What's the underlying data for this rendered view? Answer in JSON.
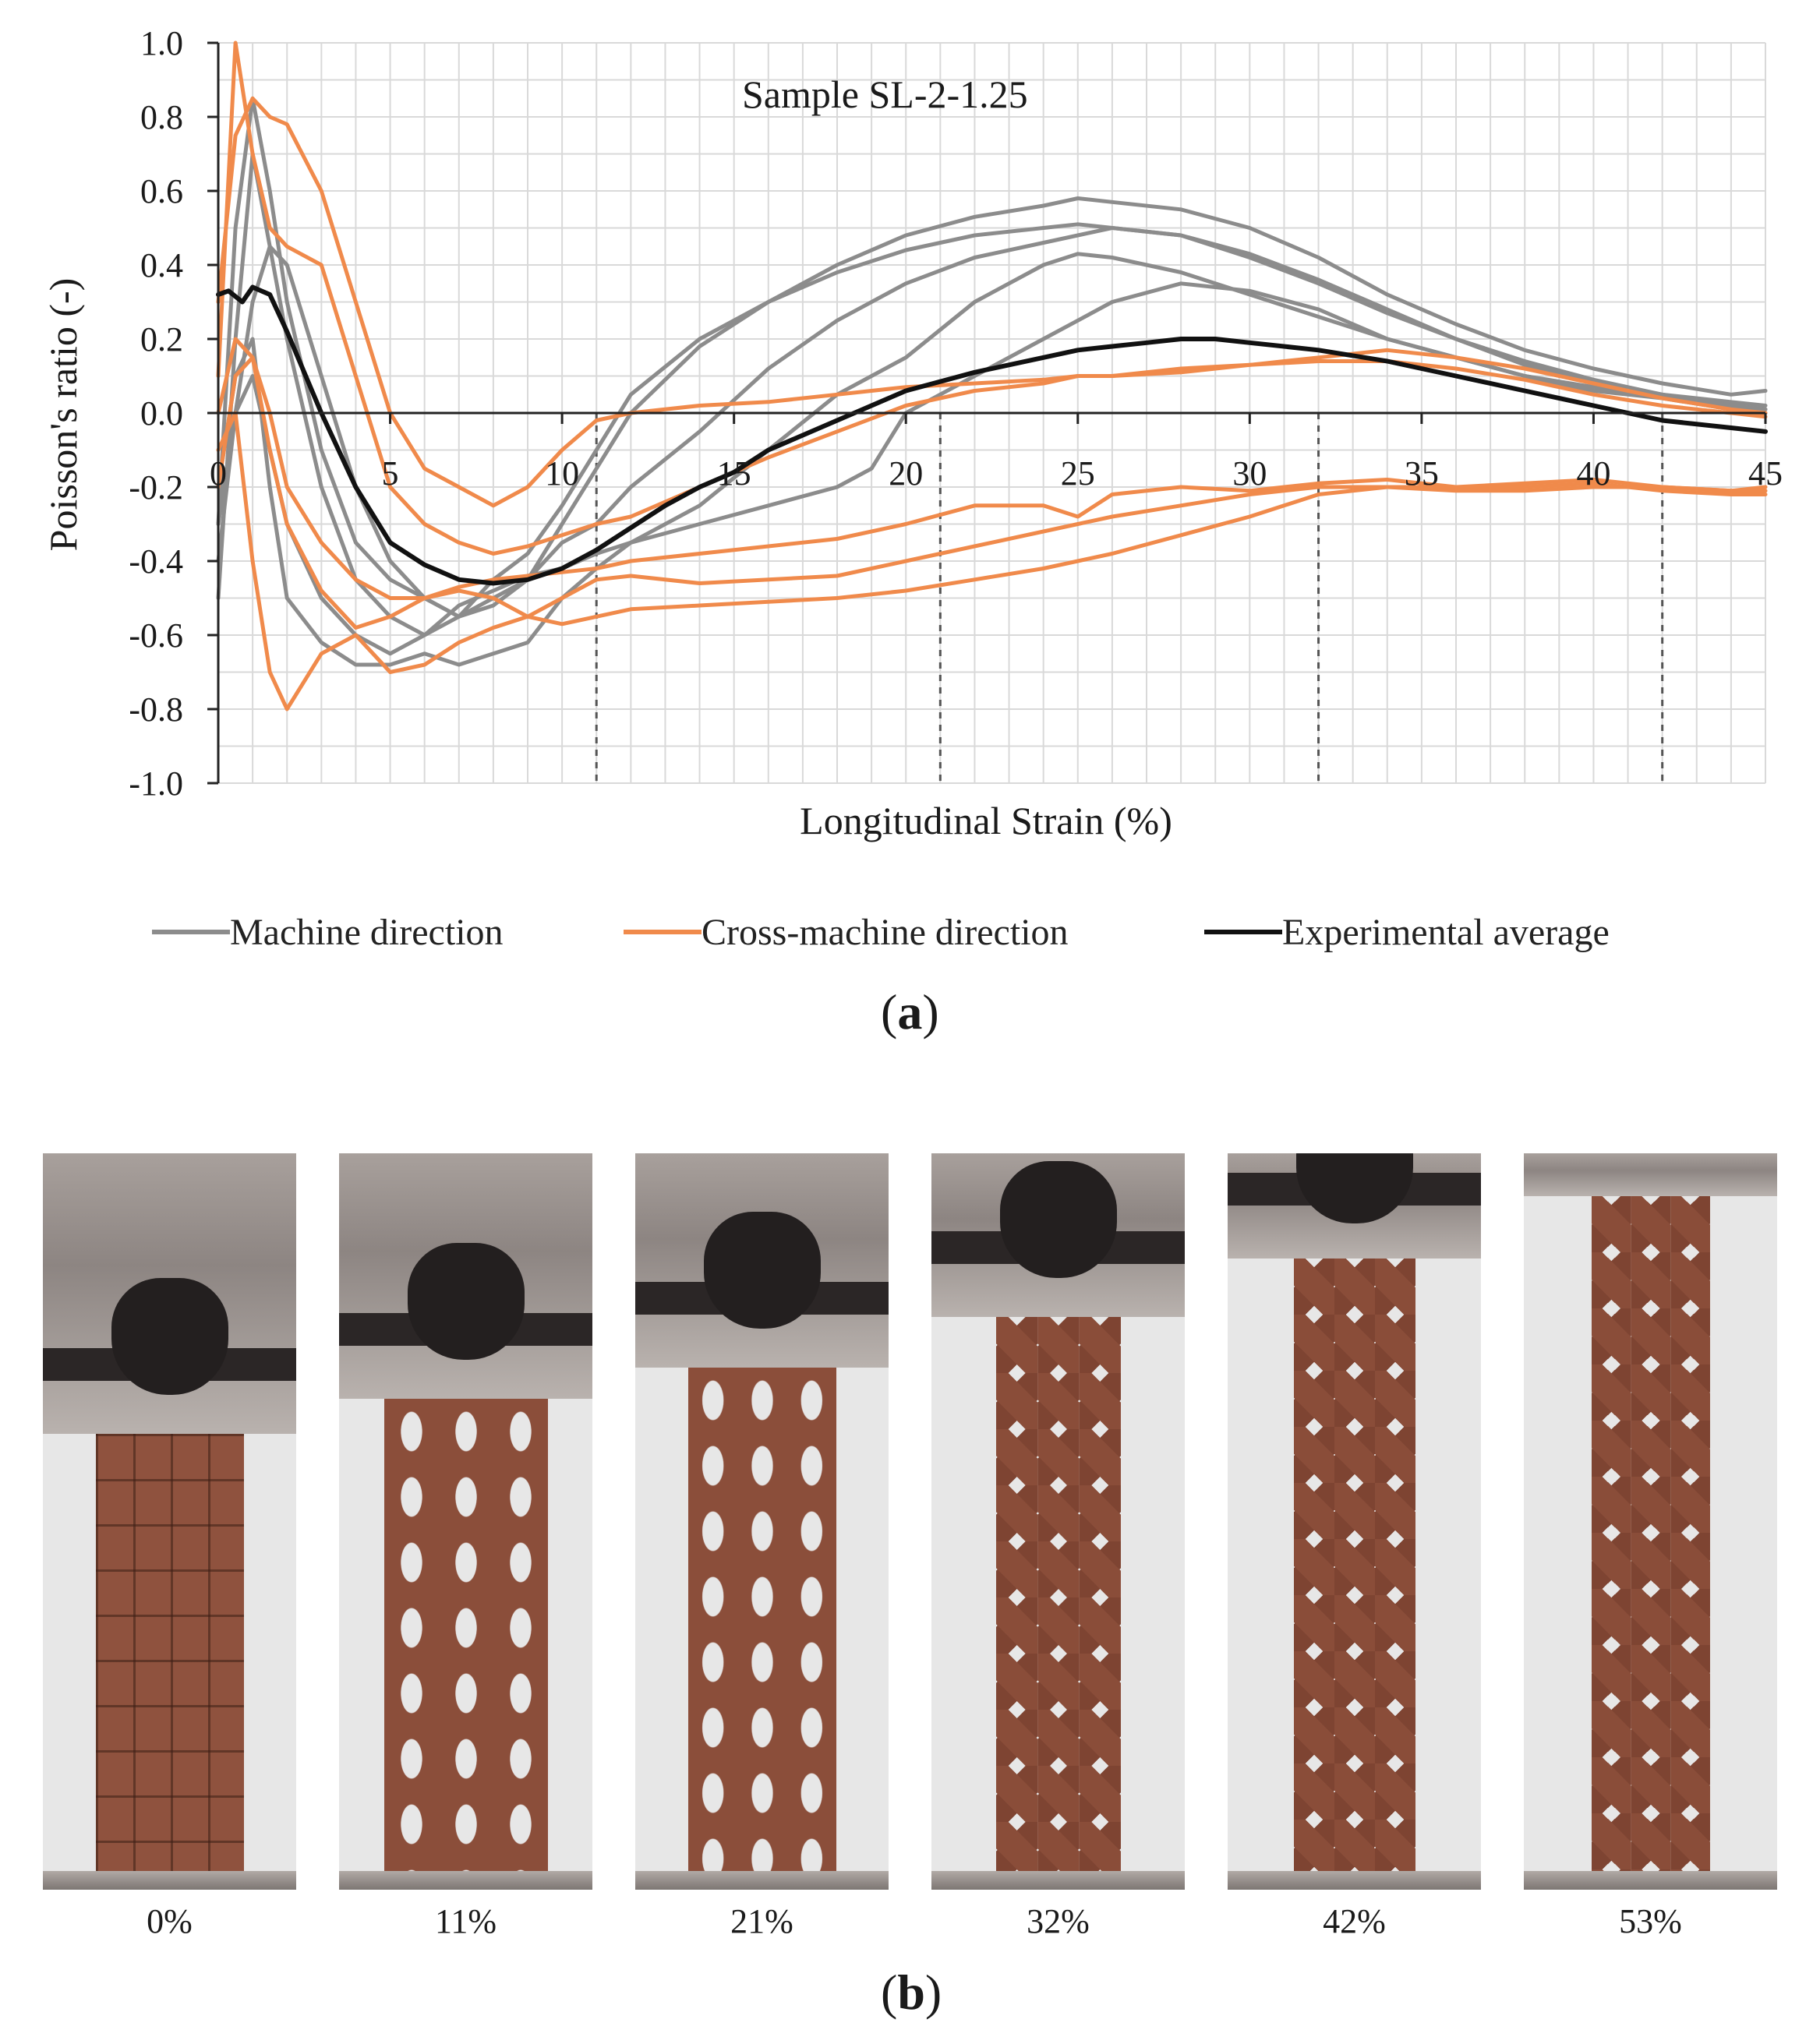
{
  "chart_data": {
    "type": "line",
    "title": "Sample SL-2-1.25",
    "xlabel": "Longitudinal Strain (%)",
    "ylabel": "Poisson's ratio (-)",
    "xlim": [
      0,
      45
    ],
    "ylim": [
      -1.0,
      1.0
    ],
    "xticks": [
      0,
      5,
      10,
      15,
      20,
      25,
      30,
      35,
      40,
      45
    ],
    "xtick_labels": [
      "0",
      "5",
      "10",
      "15",
      "20",
      "25",
      "30",
      "35",
      "40",
      "45"
    ],
    "yticks": [
      1.0,
      0.8,
      0.6,
      0.4,
      0.2,
      0.0,
      -0.2,
      -0.4,
      -0.6,
      -0.8,
      -1.0
    ],
    "ytick_labels": [
      "1.0",
      "0.8",
      "0.6",
      "0.4",
      "0.2",
      "0.0",
      "-0.2",
      "-0.4",
      "-0.6",
      "-0.8",
      "-1.0"
    ],
    "reference_lines_x": [
      11,
      21,
      32,
      42
    ],
    "colors": {
      "machine": "#8c8c8c",
      "cross": "#f08a4b",
      "average": "#111111",
      "grid": "#d9d9d9"
    },
    "legend": [
      {
        "key": "machine",
        "label": "Machine direction"
      },
      {
        "key": "cross",
        "label": "Cross-machine direction"
      },
      {
        "key": "average",
        "label": "Experimental average"
      }
    ],
    "series": [
      {
        "name": "Machine direction",
        "group": "machine",
        "x": [
          0,
          0.5,
          1,
          1.5,
          2,
          3,
          4,
          5,
          6,
          7,
          8,
          9,
          10,
          11,
          12,
          14,
          16,
          18,
          20,
          22,
          24,
          25,
          26,
          28,
          30,
          32,
          34,
          36,
          38,
          40,
          42,
          44,
          45
        ],
        "y": [
          -0.3,
          0.5,
          0.85,
          0.6,
          0.3,
          -0.1,
          -0.35,
          -0.45,
          -0.5,
          -0.55,
          -0.52,
          -0.45,
          -0.3,
          -0.15,
          0.0,
          0.18,
          0.3,
          0.4,
          0.48,
          0.53,
          0.56,
          0.58,
          0.57,
          0.55,
          0.5,
          0.42,
          0.32,
          0.24,
          0.17,
          0.12,
          0.08,
          0.05,
          0.06
        ]
      },
      {
        "name": "Machine direction",
        "group": "machine",
        "x": [
          0,
          0.5,
          1,
          1.5,
          2,
          3,
          4,
          5,
          6,
          7,
          8,
          9,
          10,
          11,
          12,
          14,
          16,
          18,
          20,
          22,
          24,
          25,
          26,
          28,
          30,
          32,
          34,
          36,
          38,
          40,
          42,
          44,
          45
        ],
        "y": [
          -0.5,
          0.2,
          0.7,
          0.45,
          0.2,
          -0.2,
          -0.45,
          -0.55,
          -0.6,
          -0.55,
          -0.45,
          -0.38,
          -0.25,
          -0.1,
          0.05,
          0.2,
          0.3,
          0.38,
          0.44,
          0.48,
          0.5,
          0.51,
          0.5,
          0.48,
          0.43,
          0.36,
          0.28,
          0.2,
          0.14,
          0.09,
          0.05,
          0.03,
          0.02
        ]
      },
      {
        "name": "Machine direction",
        "group": "machine",
        "x": [
          0,
          0.5,
          1,
          1.5,
          2,
          3,
          4,
          5,
          6,
          7,
          8,
          9,
          10,
          11,
          12,
          14,
          16,
          18,
          20,
          22,
          24,
          25,
          26,
          28,
          30,
          32,
          34,
          36,
          38,
          40,
          42,
          44,
          45
        ],
        "y": [
          -0.4,
          0.0,
          0.3,
          0.45,
          0.4,
          0.1,
          -0.2,
          -0.4,
          -0.5,
          -0.55,
          -0.5,
          -0.45,
          -0.35,
          -0.3,
          -0.2,
          -0.05,
          0.12,
          0.25,
          0.35,
          0.42,
          0.46,
          0.48,
          0.5,
          0.48,
          0.42,
          0.35,
          0.27,
          0.2,
          0.13,
          0.08,
          0.05,
          0.02,
          0.01
        ]
      },
      {
        "name": "Machine direction",
        "group": "machine",
        "x": [
          0,
          0.5,
          1,
          1.5,
          2,
          3,
          4,
          5,
          6,
          7,
          8,
          9,
          10,
          11,
          12,
          14,
          16,
          18,
          20,
          22,
          24,
          25,
          26,
          28,
          30,
          32,
          34,
          36,
          38,
          40,
          42,
          44,
          45
        ],
        "y": [
          -0.2,
          0.1,
          0.2,
          -0.2,
          -0.5,
          -0.62,
          -0.68,
          -0.68,
          -0.65,
          -0.68,
          -0.65,
          -0.62,
          -0.5,
          -0.42,
          -0.35,
          -0.25,
          -0.1,
          0.05,
          0.15,
          0.3,
          0.4,
          0.43,
          0.42,
          0.38,
          0.32,
          0.26,
          0.2,
          0.15,
          0.1,
          0.07,
          0.04,
          0.01,
          0.0
        ]
      },
      {
        "name": "Machine direction",
        "group": "machine",
        "x": [
          0,
          0.5,
          1,
          1.5,
          2,
          3,
          4,
          5,
          6,
          7,
          8,
          9,
          10,
          11,
          12,
          14,
          16,
          18,
          19,
          20,
          22,
          24,
          25,
          26,
          28,
          30,
          32,
          34,
          36,
          38,
          40,
          42,
          44,
          45
        ],
        "y": [
          -0.3,
          0.0,
          0.1,
          -0.1,
          -0.3,
          -0.5,
          -0.6,
          -0.65,
          -0.6,
          -0.52,
          -0.48,
          -0.44,
          -0.42,
          -0.38,
          -0.35,
          -0.3,
          -0.25,
          -0.2,
          -0.15,
          0.0,
          0.1,
          0.2,
          0.25,
          0.3,
          0.35,
          0.33,
          0.28,
          0.2,
          0.15,
          0.1,
          0.06,
          0.04,
          0.02,
          0.01
        ]
      },
      {
        "name": "Cross-machine direction",
        "group": "cross",
        "x": [
          0,
          0.5,
          1,
          1.5,
          2,
          3,
          4,
          5,
          6,
          7,
          8,
          9,
          10,
          11,
          12,
          14,
          16,
          18,
          20,
          22,
          24,
          25,
          26,
          28,
          30,
          32,
          34,
          36,
          38,
          40,
          42,
          44,
          45
        ],
        "y": [
          0.3,
          0.75,
          0.85,
          0.8,
          0.78,
          0.6,
          0.3,
          0.0,
          -0.15,
          -0.2,
          -0.25,
          -0.2,
          -0.1,
          -0.02,
          0.0,
          0.02,
          0.03,
          0.05,
          0.07,
          0.08,
          0.09,
          0.1,
          0.1,
          0.12,
          0.13,
          0.15,
          0.17,
          0.15,
          0.12,
          0.08,
          0.04,
          0.01,
          0.0
        ]
      },
      {
        "name": "Cross-machine direction",
        "group": "cross",
        "x": [
          0,
          0.5,
          1,
          1.5,
          2,
          3,
          4,
          5,
          6,
          7,
          8,
          9,
          10,
          11,
          12,
          14,
          16,
          18,
          20,
          22,
          24,
          25,
          26,
          28,
          30,
          32,
          34,
          36,
          38,
          40,
          42,
          44,
          45
        ],
        "y": [
          0.1,
          1.0,
          0.7,
          0.5,
          0.45,
          0.4,
          0.1,
          -0.2,
          -0.3,
          -0.35,
          -0.38,
          -0.36,
          -0.33,
          -0.3,
          -0.28,
          -0.2,
          -0.12,
          -0.05,
          0.02,
          0.06,
          0.08,
          0.1,
          0.1,
          0.11,
          0.13,
          0.14,
          0.14,
          0.12,
          0.09,
          0.05,
          0.02,
          0.0,
          -0.01
        ]
      },
      {
        "name": "Cross-machine direction",
        "group": "cross",
        "x": [
          0,
          0.5,
          1,
          1.5,
          2,
          3,
          4,
          5,
          6,
          7,
          8,
          9,
          10,
          11,
          12,
          14,
          16,
          18,
          20,
          22,
          24,
          25,
          26,
          28,
          30,
          32,
          34,
          36,
          38,
          40,
          42,
          44,
          45
        ],
        "y": [
          -0.2,
          0.1,
          0.15,
          0.0,
          -0.2,
          -0.35,
          -0.45,
          -0.5,
          -0.5,
          -0.47,
          -0.45,
          -0.44,
          -0.43,
          -0.42,
          -0.4,
          -0.38,
          -0.36,
          -0.34,
          -0.3,
          -0.25,
          -0.25,
          -0.28,
          -0.22,
          -0.2,
          -0.21,
          -0.19,
          -0.18,
          -0.2,
          -0.2,
          -0.19,
          -0.21,
          -0.22,
          -0.22
        ]
      },
      {
        "name": "Cross-machine direction",
        "group": "cross",
        "x": [
          0,
          0.5,
          1,
          1.5,
          2,
          3,
          4,
          5,
          6,
          7,
          8,
          9,
          10,
          11,
          12,
          14,
          16,
          18,
          20,
          22,
          24,
          25,
          26,
          28,
          30,
          32,
          34,
          36,
          38,
          40,
          42,
          44,
          45
        ],
        "y": [
          -0.1,
          0.0,
          -0.4,
          -0.7,
          -0.8,
          -0.65,
          -0.6,
          -0.7,
          -0.68,
          -0.62,
          -0.58,
          -0.55,
          -0.5,
          -0.45,
          -0.44,
          -0.46,
          -0.45,
          -0.44,
          -0.4,
          -0.36,
          -0.32,
          -0.3,
          -0.28,
          -0.25,
          -0.22,
          -0.2,
          -0.2,
          -0.21,
          -0.21,
          -0.2,
          -0.2,
          -0.21,
          -0.2
        ]
      },
      {
        "name": "Cross-machine direction",
        "group": "cross",
        "x": [
          0,
          0.5,
          1,
          1.5,
          2,
          3,
          4,
          5,
          6,
          7,
          8,
          9,
          10,
          11,
          12,
          14,
          16,
          18,
          20,
          22,
          24,
          25,
          26,
          28,
          30,
          32,
          34,
          36,
          38,
          40,
          42,
          44,
          45
        ],
        "y": [
          0.0,
          0.2,
          0.15,
          -0.1,
          -0.3,
          -0.48,
          -0.58,
          -0.55,
          -0.5,
          -0.48,
          -0.5,
          -0.55,
          -0.57,
          -0.55,
          -0.53,
          -0.52,
          -0.51,
          -0.5,
          -0.48,
          -0.45,
          -0.42,
          -0.4,
          -0.38,
          -0.33,
          -0.28,
          -0.22,
          -0.2,
          -0.2,
          -0.19,
          -0.18,
          -0.2,
          -0.21,
          -0.21
        ]
      },
      {
        "name": "Experimental average",
        "group": "average",
        "x": [
          0,
          0.3,
          0.7,
          1,
          1.5,
          2,
          3,
          4,
          5,
          6,
          7,
          8,
          9,
          10,
          11,
          12,
          13,
          14,
          15,
          16,
          18,
          20,
          22,
          24,
          25,
          26,
          27,
          28,
          29,
          30,
          32,
          34,
          36,
          38,
          40,
          42,
          44,
          45
        ],
        "y": [
          0.32,
          0.33,
          0.3,
          0.34,
          0.32,
          0.22,
          0.0,
          -0.2,
          -0.35,
          -0.41,
          -0.45,
          -0.46,
          -0.45,
          -0.42,
          -0.37,
          -0.31,
          -0.25,
          -0.2,
          -0.16,
          -0.1,
          -0.02,
          0.06,
          0.11,
          0.15,
          0.17,
          0.18,
          0.19,
          0.2,
          0.2,
          0.19,
          0.17,
          0.14,
          0.1,
          0.06,
          0.02,
          -0.02,
          -0.04,
          -0.05
        ]
      }
    ]
  },
  "panel_a_label": "a",
  "panel_b_label": "b",
  "photos": [
    {
      "caption": "0%",
      "state": "grid"
    },
    {
      "caption": "11%",
      "state": "open"
    },
    {
      "caption": "21%",
      "state": "open"
    },
    {
      "caption": "32%",
      "state": "diamond"
    },
    {
      "caption": "42%",
      "state": "diamond"
    },
    {
      "caption": "53%",
      "state": "diamond"
    }
  ]
}
